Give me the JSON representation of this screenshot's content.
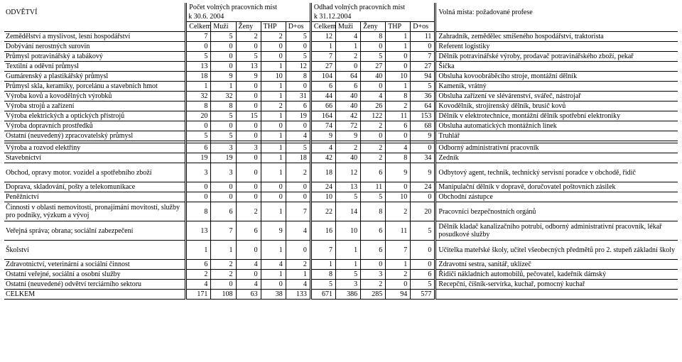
{
  "header": {
    "odvetvi": "ODVĚTVÍ",
    "pocet_title": "Počet volných pracovních míst",
    "pocet_date": "k 30.6. 2004",
    "odhad_title": "Odhad volných pracovních míst",
    "odhad_date": "k 31.12.2004",
    "volna_title": "Volná místa: požadované profese",
    "cols": [
      "Celkem",
      "Muži",
      "Ženy",
      "THP",
      "D+os",
      "Celkem",
      "Muži",
      "Ženy",
      "THP",
      "D+os"
    ]
  },
  "rows": [
    {
      "label": "Zemědělství a myslivost, lesní hospodářství",
      "v": [
        "7",
        "5",
        "2",
        "2",
        "5",
        "12",
        "4",
        "8",
        "1",
        "11"
      ],
      "prof": "Zahradník, zemědělec smíšeného hospodářství, traktorista"
    },
    {
      "label": "Dobývání nerostných surovin",
      "v": [
        "0",
        "0",
        "0",
        "0",
        "0",
        "1",
        "1",
        "0",
        "1",
        "0"
      ],
      "prof": "Referent logistiky"
    },
    {
      "label": "Průmysl potravinářský a tabákový",
      "v": [
        "5",
        "0",
        "5",
        "0",
        "5",
        "7",
        "2",
        "5",
        "0",
        "7"
      ],
      "prof": "Dělník potravinářské výroby, prodavač potravinářského zboží, pekař"
    },
    {
      "label": "Textilní a oděvní průmysl",
      "v": [
        "13",
        "0",
        "13",
        "1",
        "12",
        "27",
        "0",
        "27",
        "0",
        "27"
      ],
      "prof": "Šička"
    },
    {
      "label": "Gumárenský a plastikářský průmysl",
      "v": [
        "18",
        "9",
        "9",
        "10",
        "8",
        "104",
        "64",
        "40",
        "10",
        "94"
      ],
      "prof": "Obsluha kovoobráběcího stroje, montážní dělník"
    },
    {
      "label": "Průmysl skla, keramiky, porcelánu a stavebních hmot",
      "v": [
        "1",
        "1",
        "0",
        "1",
        "0",
        "6",
        "6",
        "0",
        "1",
        "5"
      ],
      "prof": "Kameník, vrátný"
    },
    {
      "label": "Výroba kovů a kovodělných výrobků",
      "v": [
        "32",
        "32",
        "0",
        "1",
        "31",
        "44",
        "40",
        "4",
        "8",
        "36"
      ],
      "prof": "Obsluha zařízení ve slévárenství, svářeč, nástrojař"
    },
    {
      "label": "Výroba strojů a zařízení",
      "v": [
        "8",
        "8",
        "0",
        "2",
        "6",
        "66",
        "40",
        "26",
        "2",
        "64"
      ],
      "prof": "Kovodělník, strojírenský dělník, brusič kovů"
    },
    {
      "label": "Výroba elektrických a optických přístrojů",
      "v": [
        "20",
        "5",
        "15",
        "1",
        "19",
        "164",
        "42",
        "122",
        "11",
        "153"
      ],
      "prof": "Dělník v elektrotechnice, montážní dělník spotřební elektroniky"
    },
    {
      "label": "Výroba dopravních prostředků",
      "v": [
        "0",
        "0",
        "0",
        "0",
        "0",
        "74",
        "72",
        "2",
        "6",
        "68"
      ],
      "prof": "Obsluha automatických montážních linek"
    },
    {
      "label": "Ostatní (neuvedený) zpracovatelský průmysl",
      "v": [
        "5",
        "5",
        "0",
        "1",
        "4",
        "9",
        "9",
        "0",
        "0",
        "9"
      ],
      "prof": "Truhlář"
    }
  ],
  "blank": {
    "label": "",
    "v": [
      "",
      "",
      "",
      "",
      "",
      "",
      "",
      "",
      "",
      ""
    ],
    "prof": ""
  },
  "rows2": [
    {
      "label": "Výroba a rozvod elektřiny",
      "v": [
        "6",
        "3",
        "3",
        "1",
        "5",
        "4",
        "2",
        "2",
        "4",
        "0"
      ],
      "prof": "Odborný administrativní pracovník"
    },
    {
      "label": "Stavebnictví",
      "v": [
        "19",
        "19",
        "0",
        "1",
        "18",
        "42",
        "40",
        "2",
        "8",
        "34"
      ],
      "prof": "Zedník"
    },
    {
      "label": "Obchod, opravy motor. vozidel a spotřebního zboží",
      "v": [
        "3",
        "3",
        "0",
        "1",
        "2",
        "18",
        "12",
        "6",
        "9",
        "9"
      ],
      "prof": "Odbytový agent, technik, technický servisní poradce v obchodě, řidič",
      "tall": true
    },
    {
      "label": "Doprava, skladování, pošty a telekomunikace",
      "v": [
        "0",
        "0",
        "0",
        "0",
        "0",
        "24",
        "13",
        "11",
        "0",
        "24"
      ],
      "prof": "Manipulační dělník v dopravě, doručovatel poštovních zásilek"
    },
    {
      "label": "Peněžnictví",
      "v": [
        "0",
        "0",
        "0",
        "0",
        "0",
        "10",
        "5",
        "5",
        "10",
        "0"
      ],
      "prof": "Obchodní zástupce"
    },
    {
      "label": "Činnosti v oblasti nemovitostí, pronajímání movitostí, služby pro podniky, výzkum a vývoj",
      "v": [
        "8",
        "6",
        "2",
        "1",
        "7",
        "22",
        "14",
        "8",
        "2",
        "20"
      ],
      "prof": "Pracovníci bezpečnostních orgánů",
      "tall": true,
      "wrap": true
    },
    {
      "label": "Veřejná správa; obrana; sociální zabezpečení",
      "v": [
        "13",
        "7",
        "6",
        "9",
        "4",
        "16",
        "10",
        "6",
        "11",
        "5"
      ],
      "prof": "Dělník kladač kanalizačního potrubí, odborný administrativní pracovník, lékař posudkové služby",
      "tall": true
    },
    {
      "label": "Školství",
      "v": [
        "1",
        "1",
        "0",
        "1",
        "0",
        "7",
        "1",
        "6",
        "7",
        "0"
      ],
      "prof": "Učitelka mateřské školy, učitel všeobecných předmětů pro 2. stupeň základní školy",
      "tall": true
    },
    {
      "label": "Zdravotnictví, veterinární a sociální činnost",
      "v": [
        "6",
        "2",
        "4",
        "4",
        "2",
        "1",
        "1",
        "0",
        "1",
        "0"
      ],
      "prof": "Zdravotní sestra, sanitář, uklízeč"
    },
    {
      "label": "Ostatní veřejné, sociální a osobní služby",
      "v": [
        "2",
        "2",
        "0",
        "1",
        "1",
        "8",
        "5",
        "3",
        "2",
        "6"
      ],
      "prof": "Řidiči nákladních automobilů, pečovatel, kadeřník dámský"
    },
    {
      "label": "Ostatní (neuvedené) odvětví terciárního sektoru",
      "v": [
        "4",
        "0",
        "4",
        "0",
        "4",
        "5",
        "3",
        "2",
        "0",
        "5"
      ],
      "prof": "Recepční, číšník-servírka, kuchař, pomocný kuchař"
    },
    {
      "label": "CELKEM",
      "v": [
        "171",
        "108",
        "63",
        "38",
        "133",
        "671",
        "386",
        "285",
        "94",
        "577"
      ],
      "prof": ""
    }
  ]
}
